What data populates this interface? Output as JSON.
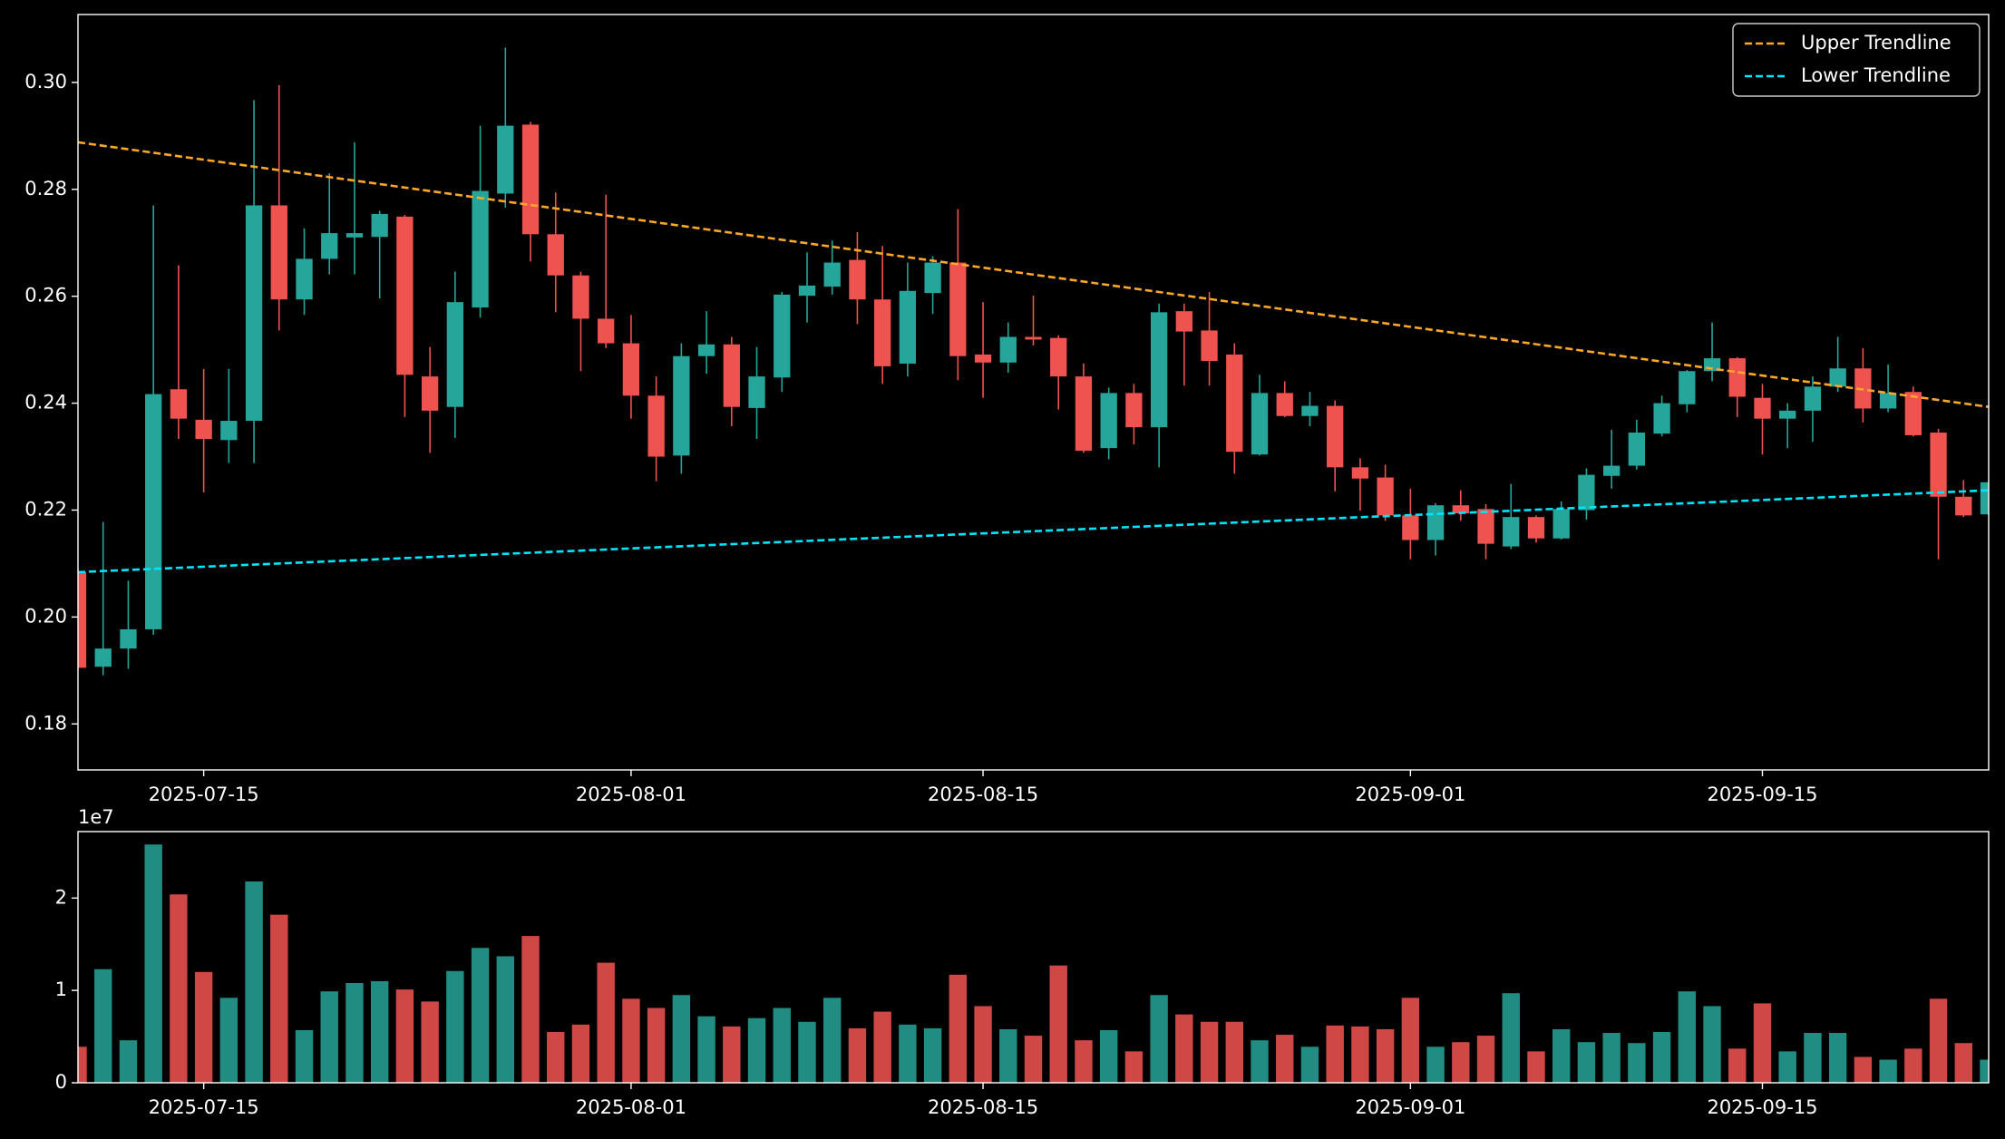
{
  "chart_data": [
    {
      "type": "candlestick",
      "x": [
        "2025-07-10",
        "2025-07-11",
        "2025-07-12",
        "2025-07-13",
        "2025-07-14",
        "2025-07-15",
        "2025-07-16",
        "2025-07-17",
        "2025-07-18",
        "2025-07-19",
        "2025-07-20",
        "2025-07-21",
        "2025-07-22",
        "2025-07-23",
        "2025-07-24",
        "2025-07-25",
        "2025-07-26",
        "2025-07-27",
        "2025-07-28",
        "2025-07-29",
        "2025-07-30",
        "2025-07-31",
        "2025-08-01",
        "2025-08-02",
        "2025-08-03",
        "2025-08-04",
        "2025-08-05",
        "2025-08-06",
        "2025-08-07",
        "2025-08-08",
        "2025-08-09",
        "2025-08-10",
        "2025-08-11",
        "2025-08-12",
        "2025-08-13",
        "2025-08-14",
        "2025-08-15",
        "2025-08-16",
        "2025-08-17",
        "2025-08-18",
        "2025-08-19",
        "2025-08-20",
        "2025-08-21",
        "2025-08-22",
        "2025-08-23",
        "2025-08-24",
        "2025-08-25",
        "2025-08-26",
        "2025-08-27",
        "2025-08-28",
        "2025-08-29",
        "2025-08-30",
        "2025-08-31",
        "2025-09-01",
        "2025-09-02",
        "2025-09-03",
        "2025-09-04",
        "2025-09-05",
        "2025-09-06",
        "2025-09-07",
        "2025-09-08",
        "2025-09-09",
        "2025-09-10",
        "2025-09-11",
        "2025-09-12",
        "2025-09-13",
        "2025-09-14",
        "2025-09-15",
        "2025-09-16",
        "2025-09-17",
        "2025-09-18",
        "2025-09-19",
        "2025-09-20",
        "2025-09-21",
        "2025-09-22",
        "2025-09-23",
        "2025-09-24"
      ],
      "open": [
        0.2084,
        0.1907,
        0.1941,
        0.1977,
        0.2426,
        0.2369,
        0.2331,
        0.2367,
        0.277,
        0.2594,
        0.267,
        0.271,
        0.2711,
        0.2749,
        0.245,
        0.2393,
        0.2579,
        0.2792,
        0.2921,
        0.2716,
        0.2639,
        0.2558,
        0.2512,
        0.2414,
        0.2302,
        0.2488,
        0.251,
        0.2391,
        0.2448,
        0.2601,
        0.2618,
        0.2668,
        0.2594,
        0.2474,
        0.2606,
        0.2663,
        0.2491,
        0.2476,
        0.2524,
        0.2522,
        0.245,
        0.2316,
        0.2419,
        0.2355,
        0.2572,
        0.2536,
        0.2491,
        0.2304,
        0.2419,
        0.2376,
        0.2395,
        0.228,
        0.2261,
        0.219,
        0.2144,
        0.2209,
        0.2202,
        0.2132,
        0.2187,
        0.2147,
        0.22,
        0.2264,
        0.2283,
        0.2343,
        0.2398,
        0.246,
        0.2484,
        0.241,
        0.2371,
        0.2386,
        0.2431,
        0.2465,
        0.239,
        0.2421,
        0.2345,
        0.2225,
        0.2192
      ],
      "high": [
        0.209,
        0.2178,
        0.2068,
        0.277,
        0.2658,
        0.2464,
        0.2464,
        0.2967,
        0.2995,
        0.2727,
        0.283,
        0.2888,
        0.276,
        0.2752,
        0.2505,
        0.2646,
        0.2919,
        0.3065,
        0.2926,
        0.2794,
        0.2646,
        0.279,
        0.2565,
        0.245,
        0.2512,
        0.2572,
        0.2524,
        0.2505,
        0.2608,
        0.2682,
        0.2704,
        0.272,
        0.2694,
        0.2663,
        0.2675,
        0.2763,
        0.2589,
        0.2551,
        0.2601,
        0.2527,
        0.2474,
        0.2429,
        0.2436,
        0.2586,
        0.2586,
        0.2608,
        0.2512,
        0.2453,
        0.2441,
        0.2421,
        0.2405,
        0.2297,
        0.2285,
        0.224,
        0.2213,
        0.2237,
        0.2211,
        0.2249,
        0.219,
        0.2216,
        0.2278,
        0.235,
        0.2369,
        0.2414,
        0.2462,
        0.2551,
        0.2486,
        0.2436,
        0.24,
        0.245,
        0.2524,
        0.2503,
        0.2472,
        0.2431,
        0.2352,
        0.2256,
        0.2254
      ],
      "low": [
        0.19,
        0.1891,
        0.1903,
        0.1967,
        0.2333,
        0.2233,
        0.2288,
        0.2288,
        0.2536,
        0.2565,
        0.2641,
        0.2641,
        0.2596,
        0.2374,
        0.2307,
        0.2335,
        0.256,
        0.2766,
        0.2665,
        0.257,
        0.246,
        0.2503,
        0.2371,
        0.2254,
        0.2268,
        0.2455,
        0.2357,
        0.2333,
        0.2421,
        0.2551,
        0.2603,
        0.2548,
        0.2436,
        0.245,
        0.2567,
        0.2443,
        0.241,
        0.2457,
        0.2508,
        0.2388,
        0.2307,
        0.2295,
        0.2323,
        0.228,
        0.2433,
        0.2433,
        0.2268,
        0.2302,
        0.2374,
        0.2357,
        0.2235,
        0.2199,
        0.218,
        0.2108,
        0.2115,
        0.218,
        0.2108,
        0.2127,
        0.2139,
        0.2145,
        0.2182,
        0.224,
        0.2276,
        0.2338,
        0.2383,
        0.2441,
        0.2374,
        0.2304,
        0.2316,
        0.2328,
        0.2421,
        0.2364,
        0.2383,
        0.2338,
        0.2108,
        0.2187,
        0.219
      ],
      "close": [
        0.1905,
        0.1941,
        0.1977,
        0.2417,
        0.2371,
        0.2333,
        0.2367,
        0.277,
        0.2594,
        0.267,
        0.2718,
        0.2718,
        0.2754,
        0.2453,
        0.2386,
        0.2589,
        0.2797,
        0.2919,
        0.2716,
        0.2639,
        0.2558,
        0.2512,
        0.2414,
        0.23,
        0.2488,
        0.251,
        0.2393,
        0.245,
        0.2603,
        0.262,
        0.2663,
        0.2594,
        0.2469,
        0.261,
        0.2663,
        0.2488,
        0.2476,
        0.2524,
        0.2519,
        0.245,
        0.2311,
        0.2419,
        0.2355,
        0.257,
        0.2534,
        0.2479,
        0.2309,
        0.2419,
        0.2376,
        0.2395,
        0.228,
        0.2259,
        0.219,
        0.2144,
        0.2209,
        0.2194,
        0.2137,
        0.2187,
        0.2147,
        0.2202,
        0.2266,
        0.2283,
        0.2345,
        0.24,
        0.246,
        0.2484,
        0.2412,
        0.2371,
        0.2386,
        0.2431,
        0.2465,
        0.239,
        0.2419,
        0.234,
        0.2225,
        0.219,
        0.2252
      ],
      "up_color": "#26a69a",
      "down_color": "#ef5350",
      "series": [
        {
          "name": "Upper Trendline",
          "color": "#ffa726",
          "x": [
            "2025-07-10",
            "2025-09-24"
          ],
          "values": [
            0.2888,
            0.2393
          ]
        },
        {
          "name": "Lower Trendline",
          "color": "#00e5ff",
          "x": [
            "2025-07-10",
            "2025-09-24"
          ],
          "values": [
            0.2084,
            0.2237
          ]
        }
      ],
      "xlim": [
        "2025-07-10",
        "2025-09-24"
      ],
      "xticks": [
        "2025-07-15",
        "2025-08-01",
        "2025-08-15",
        "2025-09-01",
        "2025-09-15"
      ],
      "ylim": [
        0.1714,
        0.3127
      ],
      "yticks": [
        0.18,
        {
          "value": 0.2,
          "label": "0.20"
        },
        0.22,
        0.24,
        0.26,
        0.28,
        {
          "value": 0.3,
          "label": "0.30"
        }
      ],
      "legend": "upper right"
    },
    {
      "type": "bar",
      "values": [
        3900000,
        12300000,
        4600000,
        25800000,
        20400000,
        12000000,
        9200000,
        21800000,
        18200000,
        5700000,
        9900000,
        10800000,
        11000000,
        10100000,
        8800000,
        12100000,
        14600000,
        13700000,
        15900000,
        5500000,
        6300000,
        13000000,
        9100000,
        8100000,
        9500000,
        7200000,
        6100000,
        7000000,
        8100000,
        6600000,
        9200000,
        5900000,
        7700000,
        6300000,
        5900000,
        11700000,
        8300000,
        5800000,
        5100000,
        12700000,
        4600000,
        5700000,
        3400000,
        9500000,
        7400000,
        6600000,
        6600000,
        4600000,
        5200000,
        3900000,
        6200000,
        6100000,
        5800000,
        9200000,
        3900000,
        4400000,
        5100000,
        9700000,
        3400000,
        5800000,
        4400000,
        5400000,
        4300000,
        5500000,
        9900000,
        8300000,
        3700000,
        8600000,
        3400000,
        5400000,
        5400000,
        2800000,
        2500000,
        3700000,
        9100000,
        4300000,
        2500000
      ],
      "up_color": "#208c82",
      "down_color": "#cf4845",
      "xlim": [
        "2025-07-10",
        "2025-09-24"
      ],
      "xticks": [
        "2025-07-15",
        "2025-08-01",
        "2025-08-15",
        "2025-09-01",
        "2025-09-15"
      ],
      "ylim": [
        0,
        27200000
      ],
      "yticks": [
        0,
        {
          "value": 10000000,
          "label": "1"
        },
        {
          "value": 20000000,
          "label": "2"
        }
      ],
      "offset_label": "1e7"
    }
  ]
}
